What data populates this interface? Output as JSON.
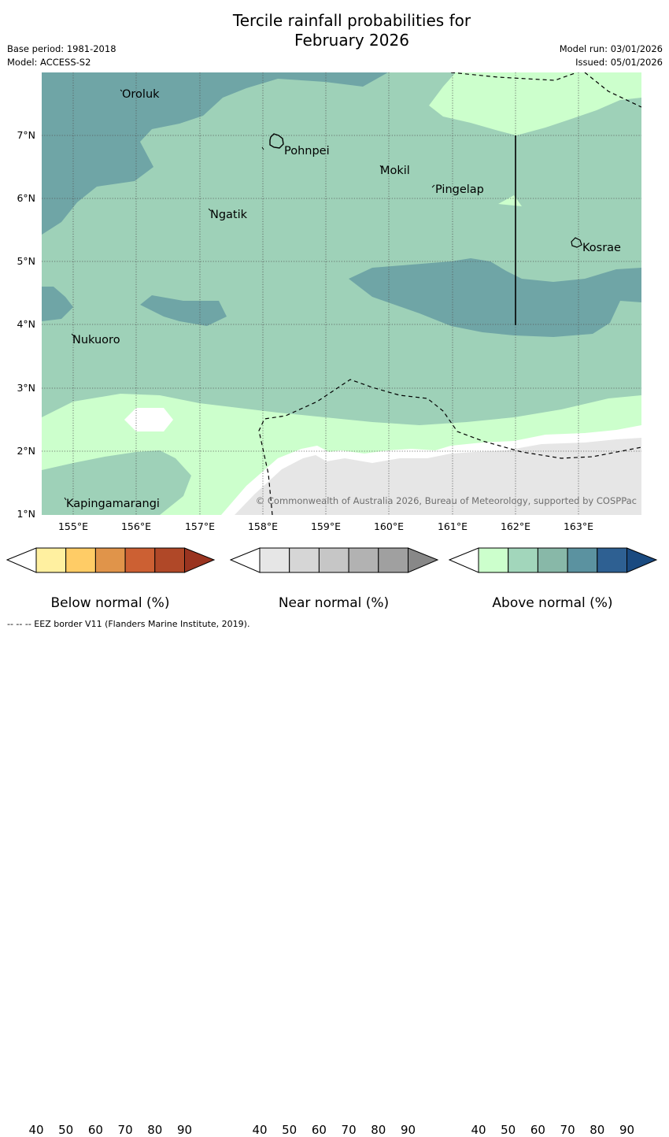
{
  "title": {
    "line1": "Tercile rainfall probabilities for",
    "line2": "February 2026"
  },
  "meta": {
    "base_period": "Base period: 1981-2018",
    "model": "Model: ACCESS-S2",
    "model_run": "Model run: 03/01/2026",
    "issued": "Issued: 05/01/2026"
  },
  "map": {
    "places": [
      {
        "name": "Oroluk"
      },
      {
        "name": "Pohnpei"
      },
      {
        "name": "Mokil"
      },
      {
        "name": "Pingelap"
      },
      {
        "name": "Ngatik"
      },
      {
        "name": "Kosrae"
      },
      {
        "name": "Nukuoro"
      },
      {
        "name": "Kapingamarangi"
      }
    ],
    "credit": "© Commonwealth of Australia 2026, Bureau of Meteorology, supported by COSPPac",
    "y_ticks": [
      "7°N",
      "6°N",
      "5°N",
      "4°N",
      "3°N",
      "2°N",
      "1°N"
    ],
    "x_ticks": [
      "155°E",
      "156°E",
      "157°E",
      "158°E",
      "159°E",
      "160°E",
      "161°E",
      "162°E",
      "163°E"
    ]
  },
  "legends": [
    {
      "label": "Below normal (%)",
      "ticks": [
        "40",
        "50",
        "60",
        "70",
        "80",
        "90"
      ],
      "colors": [
        "#ffffff",
        "#fff0a0",
        "#ffcc66",
        "#e0944a",
        "#cc6033",
        "#b04828",
        "#9a3420"
      ]
    },
    {
      "label": "Near normal (%)",
      "ticks": [
        "40",
        "50",
        "60",
        "70",
        "80",
        "90"
      ],
      "colors": [
        "#ffffff",
        "#e6e6e6",
        "#d6d6d6",
        "#c6c6c6",
        "#b2b2b2",
        "#a0a0a0",
        "#888888"
      ]
    },
    {
      "label": "Above normal (%)",
      "ticks": [
        "40",
        "50",
        "60",
        "70",
        "80",
        "90"
      ],
      "colors": [
        "#ffffff",
        "#ccffcc",
        "#a2d6bb",
        "#88b8a8",
        "#5b92a0",
        "#2e6092",
        "#1a4a80"
      ]
    }
  ],
  "footnote": "--  --  -- EEZ border V11 (Flanders Marine Institute, 2019).",
  "colors": {
    "above_40_50": "#ccffcc",
    "above_50_60": "#9ed1b8",
    "above_60_70": "#6fa5a6",
    "near_40_50": "#e6e6e6"
  }
}
